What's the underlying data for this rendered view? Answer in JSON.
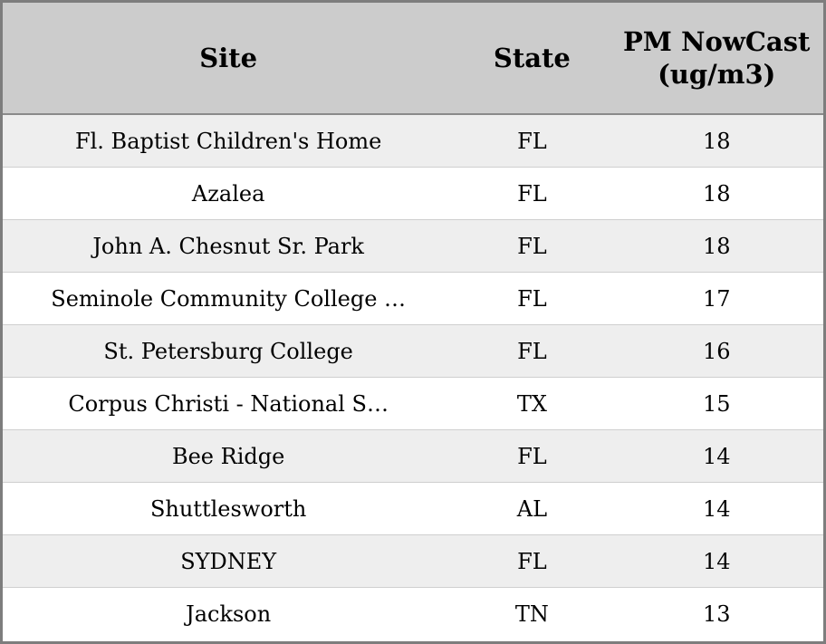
{
  "chart_data": {
    "type": "table",
    "title": "",
    "columns": [
      "Site",
      "State",
      "PM NowCast (ug/m3)"
    ],
    "rows": [
      [
        "Fl. Baptist Children's Home",
        "FL",
        "18"
      ],
      [
        "Azalea",
        "FL",
        "18"
      ],
      [
        "John A. Chesnut Sr. Park",
        "FL",
        "18"
      ],
      [
        "Seminole Community College …",
        "FL",
        "17"
      ],
      [
        "St. Petersburg College",
        "FL",
        "16"
      ],
      [
        "Corpus Christi - National S…",
        "TX",
        "15"
      ],
      [
        "Bee Ridge",
        "FL",
        "14"
      ],
      [
        "Shuttlesworth",
        "AL",
        "14"
      ],
      [
        "SYDNEY",
        "FL",
        "14"
      ],
      [
        "Jackson",
        "TN",
        "13"
      ]
    ]
  },
  "colors": {
    "header_bg": "#cccccc",
    "row_alt_bg": "#eeeeee",
    "row_bg": "#ffffff",
    "frame_border": "#7d7d7d"
  }
}
